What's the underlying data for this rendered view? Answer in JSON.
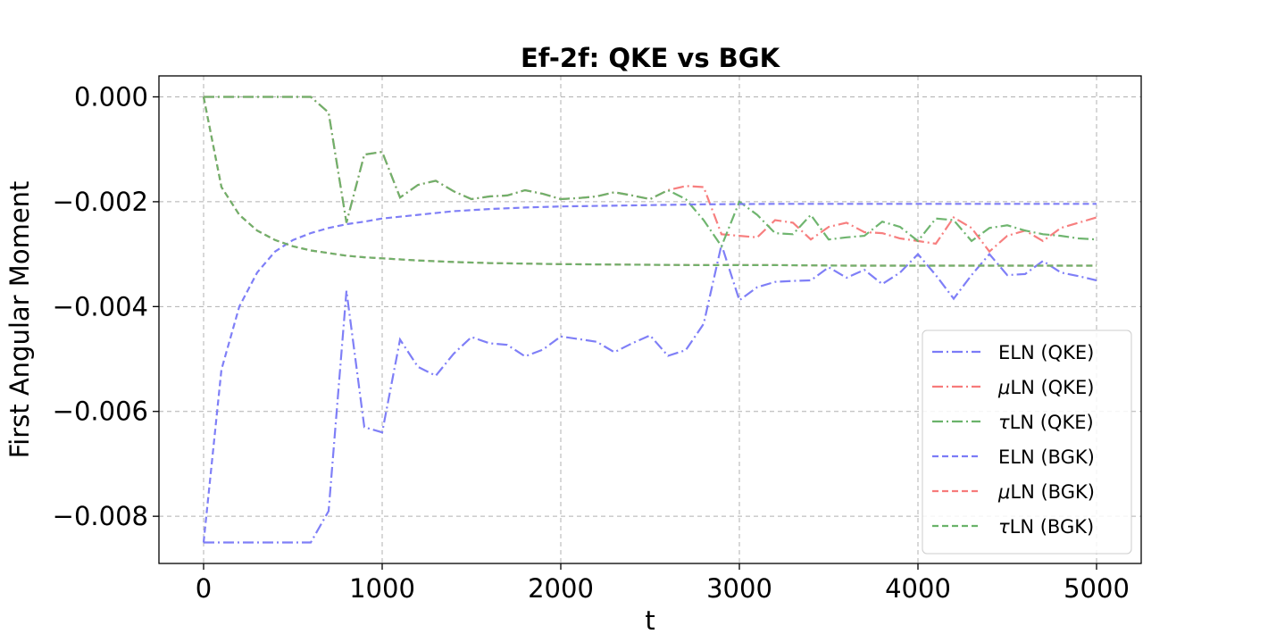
{
  "chart_data": {
    "type": "line",
    "title": "Ef-2f: QKE vs BGK",
    "xlabel": "t",
    "ylabel": "First Angular Moment",
    "xlim": [
      -250,
      5250
    ],
    "ylim": [
      -0.0089,
      0.0004
    ],
    "xticks": [
      0,
      1000,
      2000,
      3000,
      4000,
      5000
    ],
    "xtick_labels": [
      "0",
      "1000",
      "2000",
      "3000",
      "4000",
      "5000"
    ],
    "yticks": [
      0.0,
      -0.002,
      -0.004,
      -0.006,
      -0.008
    ],
    "ytick_labels": [
      "0.000",
      "−0.002",
      "−0.004",
      "−0.006",
      "−0.008"
    ],
    "grid": true,
    "legend_position": "lower-right",
    "series": [
      {
        "name": "ELN (QKE)",
        "label_prefix": "",
        "label_rest": "ELN (QKE)",
        "color": "#7b7bf7",
        "dash": "dashdot",
        "x": [
          0,
          100,
          200,
          300,
          400,
          500,
          600,
          700,
          800,
          900,
          1000,
          1100,
          1200,
          1300,
          1400,
          1500,
          1600,
          1700,
          1800,
          1900,
          2000,
          2100,
          2200,
          2300,
          2400,
          2500,
          2600,
          2700,
          2800,
          2900,
          3000,
          3100,
          3200,
          3300,
          3400,
          3500,
          3600,
          3700,
          3800,
          3900,
          4000,
          4100,
          4200,
          4300,
          4400,
          4500,
          4600,
          4700,
          4800,
          4900,
          5000
        ],
        "y": [
          -0.0085,
          -0.0085,
          -0.0085,
          -0.0085,
          -0.0085,
          -0.0085,
          -0.0085,
          -0.0079,
          -0.0037,
          -0.0063,
          -0.0064,
          -0.00463,
          -0.00515,
          -0.00532,
          -0.0049,
          -0.00458,
          -0.0047,
          -0.00473,
          -0.00495,
          -0.00482,
          -0.00457,
          -0.00462,
          -0.00467,
          -0.00487,
          -0.0047,
          -0.00455,
          -0.00494,
          -0.00483,
          -0.00433,
          -0.00282,
          -0.00388,
          -0.00363,
          -0.00353,
          -0.00351,
          -0.0035,
          -0.00325,
          -0.00345,
          -0.0033,
          -0.00357,
          -0.00335,
          -0.003,
          -0.0034,
          -0.00385,
          -0.0034,
          -0.003,
          -0.0034,
          -0.00338,
          -0.00313,
          -0.00335,
          -0.00342,
          -0.0035
        ]
      },
      {
        "name": "μLN (QKE)",
        "label_prefix": "μ",
        "label_rest": "LN (QKE)",
        "color": "#f77b7b",
        "dash": "dashdot",
        "x": [
          0,
          100,
          200,
          300,
          400,
          500,
          600,
          700,
          800,
          900,
          1000,
          1100,
          1200,
          1300,
          1400,
          1500,
          1600,
          1700,
          1800,
          1900,
          2000,
          2100,
          2200,
          2300,
          2400,
          2500,
          2600,
          2700,
          2800,
          2900,
          3000,
          3100,
          3200,
          3300,
          3400,
          3500,
          3600,
          3700,
          3800,
          3900,
          4000,
          4100,
          4200,
          4300,
          4400,
          4500,
          4600,
          4700,
          4800,
          4900,
          5000
        ],
        "y": [
          0.0,
          0.0,
          0.0,
          0.0,
          0.0,
          0.0,
          0.0,
          -0.0003,
          -0.0024,
          -0.0011,
          -0.00105,
          -0.00192,
          -0.00168,
          -0.0016,
          -0.0018,
          -0.00195,
          -0.0019,
          -0.00188,
          -0.00178,
          -0.00185,
          -0.00195,
          -0.00193,
          -0.0019,
          -0.00182,
          -0.00188,
          -0.00195,
          -0.00178,
          -0.0017,
          -0.00172,
          -0.00262,
          -0.00265,
          -0.00268,
          -0.00235,
          -0.0024,
          -0.00272,
          -0.00248,
          -0.0024,
          -0.00258,
          -0.0026,
          -0.0027,
          -0.00275,
          -0.0028,
          -0.0023,
          -0.0025,
          -0.00295,
          -0.00265,
          -0.00255,
          -0.00275,
          -0.0025,
          -0.0024,
          -0.0023
        ]
      },
      {
        "name": "τLN (QKE)",
        "label_prefix": "τ",
        "label_rest": "LN (QKE)",
        "color": "#6ab36a",
        "dash": "dashdot",
        "x": [
          0,
          100,
          200,
          300,
          400,
          500,
          600,
          700,
          800,
          900,
          1000,
          1100,
          1200,
          1300,
          1400,
          1500,
          1600,
          1700,
          1800,
          1900,
          2000,
          2100,
          2200,
          2300,
          2400,
          2500,
          2600,
          2700,
          2800,
          2900,
          3000,
          3100,
          3200,
          3300,
          3400,
          3500,
          3600,
          3700,
          3800,
          3900,
          4000,
          4100,
          4200,
          4300,
          4400,
          4500,
          4600,
          4700,
          4800,
          4900,
          5000
        ],
        "y": [
          0.0,
          0.0,
          0.0,
          0.0,
          0.0,
          0.0,
          0.0,
          -0.0003,
          -0.0024,
          -0.0011,
          -0.00105,
          -0.00192,
          -0.00168,
          -0.0016,
          -0.0018,
          -0.00195,
          -0.0019,
          -0.00188,
          -0.00178,
          -0.00185,
          -0.00195,
          -0.00193,
          -0.0019,
          -0.00182,
          -0.00188,
          -0.00195,
          -0.00178,
          -0.00195,
          -0.00235,
          -0.00285,
          -0.002,
          -0.00225,
          -0.0026,
          -0.00262,
          -0.00225,
          -0.00272,
          -0.00268,
          -0.00265,
          -0.00238,
          -0.00248,
          -0.00275,
          -0.00232,
          -0.00235,
          -0.00275,
          -0.0025,
          -0.00245,
          -0.00255,
          -0.00262,
          -0.00265,
          -0.0027,
          -0.00272
        ]
      },
      {
        "name": "ELN (BGK)",
        "label_prefix": "",
        "label_rest": "ELN (BGK)",
        "color": "#7b7bf7",
        "dash": "dashed",
        "x": [
          0,
          100,
          200,
          300,
          400,
          500,
          600,
          700,
          800,
          900,
          1000,
          1200,
          1400,
          1600,
          1800,
          2000,
          2400,
          2800,
          3200,
          3600,
          4000,
          4500,
          5000
        ],
        "y": [
          -0.0085,
          -0.0052,
          -0.004,
          -0.00335,
          -0.00295,
          -0.00273,
          -0.0026,
          -0.0025,
          -0.00243,
          -0.00238,
          -0.00232,
          -0.00225,
          -0.00218,
          -0.00214,
          -0.00211,
          -0.00209,
          -0.00207,
          -0.00205,
          -0.00204,
          -0.00204,
          -0.00204,
          -0.00204,
          -0.00204
        ]
      },
      {
        "name": "μLN (BGK)",
        "label_prefix": "μ",
        "label_rest": "LN (BGK)",
        "color": "#f77b7b",
        "dash": "dashed",
        "x": [
          0,
          100,
          200,
          300,
          400,
          500,
          600,
          700,
          800,
          900,
          1000,
          1200,
          1400,
          1600,
          1800,
          2000,
          2400,
          2800,
          3200,
          3600,
          4000,
          4500,
          5000
        ],
        "y": [
          0.0,
          -0.00172,
          -0.00225,
          -0.00255,
          -0.00273,
          -0.00285,
          -0.00293,
          -0.00298,
          -0.00303,
          -0.00306,
          -0.00308,
          -0.00312,
          -0.00315,
          -0.00317,
          -0.00318,
          -0.00319,
          -0.0032,
          -0.00321,
          -0.00321,
          -0.00322,
          -0.00322,
          -0.00322,
          -0.00322
        ]
      },
      {
        "name": "τLN (BGK)",
        "label_prefix": "τ",
        "label_rest": "LN (BGK)",
        "color": "#6ab36a",
        "dash": "dashed",
        "x": [
          0,
          100,
          200,
          300,
          400,
          500,
          600,
          700,
          800,
          900,
          1000,
          1200,
          1400,
          1600,
          1800,
          2000,
          2400,
          2800,
          3200,
          3600,
          4000,
          4500,
          5000
        ],
        "y": [
          0.0,
          -0.00172,
          -0.00225,
          -0.00255,
          -0.00273,
          -0.00285,
          -0.00293,
          -0.00298,
          -0.00303,
          -0.00306,
          -0.00308,
          -0.00312,
          -0.00315,
          -0.00317,
          -0.00318,
          -0.00319,
          -0.0032,
          -0.00321,
          -0.00321,
          -0.00322,
          -0.00322,
          -0.00322,
          -0.00322
        ]
      }
    ]
  }
}
